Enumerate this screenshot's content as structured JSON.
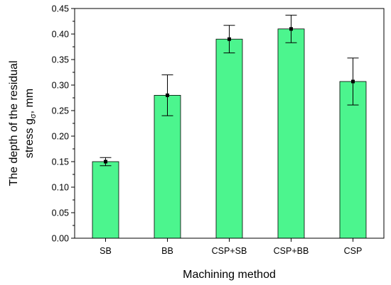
{
  "chart_data": {
    "type": "bar",
    "categories": [
      "SB",
      "BB",
      "CSP+SB",
      "CSP+BB",
      "CSP"
    ],
    "values": [
      0.15,
      0.28,
      0.39,
      0.41,
      0.307
    ],
    "error": [
      0.008,
      0.04,
      0.027,
      0.027,
      0.046
    ],
    "xlabel": "Machining method",
    "ylabel_line1": "The depth of the residual",
    "ylabel_line2_prefix": "stress g",
    "ylabel_line2_sub": "σ",
    "ylabel_line2_suffix": ", mm",
    "ylim": [
      0,
      0.45
    ],
    "yticks": [
      "0.00",
      "0.05",
      "0.10",
      "0.15",
      "0.20",
      "0.25",
      "0.30",
      "0.35",
      "0.40",
      "0.45"
    ],
    "bar_color": "#4cf58e",
    "grid": false
  }
}
